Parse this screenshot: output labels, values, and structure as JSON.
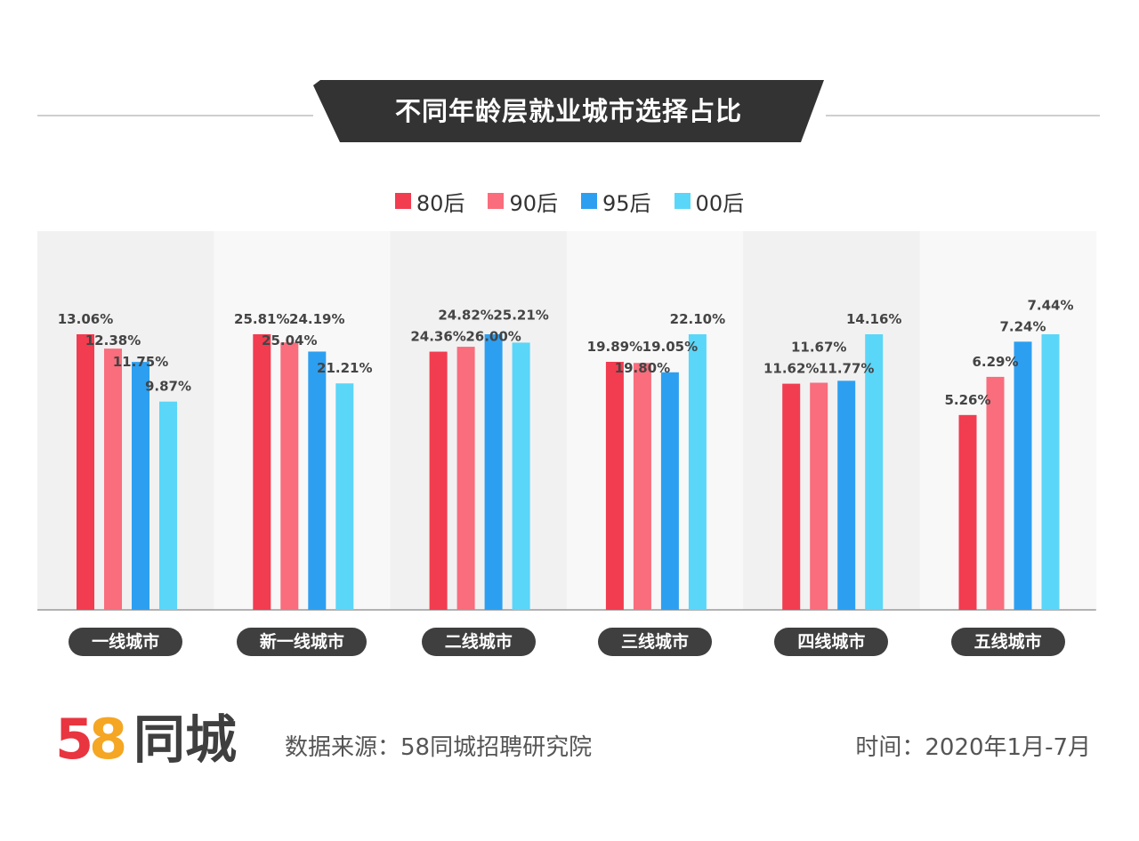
{
  "title": "不同年龄层就业城市选择占比",
  "legend": [
    {
      "label": "80后",
      "color": "#f23c50"
    },
    {
      "label": "90后",
      "color": "#f96d7c"
    },
    {
      "label": "95后",
      "color": "#2d9ff1"
    },
    {
      "label": "00后",
      "color": "#5ad6f8"
    }
  ],
  "chart_data": {
    "type": "bar",
    "title": "不同年龄层就业城市选择占比",
    "categories": [
      "一线城市",
      "新一线城市",
      "二线城市",
      "三线城市",
      "四线城市",
      "五线城市"
    ],
    "series": [
      {
        "name": "80后",
        "values": [
          13.06,
          25.81,
          24.36,
          19.89,
          11.62,
          5.26
        ],
        "labels": [
          "13.06%",
          "25.81%",
          "24.36%",
          "19.89%",
          "11.62%",
          "5.26%"
        ]
      },
      {
        "name": "90后",
        "values": [
          12.38,
          25.04,
          24.82,
          19.8,
          11.67,
          6.29
        ],
        "labels": [
          "12.38%",
          "25.04%",
          "24.82%",
          "19.80%",
          "11.67%",
          "6.29%"
        ]
      },
      {
        "name": "95后",
        "values": [
          11.75,
          24.19,
          26.0,
          19.05,
          11.77,
          7.24
        ],
        "labels": [
          "11.75%",
          "24.19%",
          "26.00%",
          "19.05%",
          "11.77%",
          "7.24%"
        ]
      },
      {
        "name": "00后",
        "values": [
          9.87,
          21.21,
          25.21,
          22.1,
          14.16,
          7.44
        ],
        "labels": [
          "9.87%",
          "21.21%",
          "25.21%",
          "22.10%",
          "14.16%",
          "7.44%"
        ]
      }
    ],
    "group_max": [
      13.06,
      25.81,
      26.0,
      22.1,
      14.16,
      7.44
    ],
    "xlabel": "",
    "ylabel": "",
    "note": "Each city group is scaled to its own maximum value"
  },
  "footer": {
    "logo_5": "5",
    "logo_8": "8",
    "logo_text": "同城",
    "source": "数据来源：58同城招聘研究院",
    "time": "时间：2020年1月-7月"
  },
  "colors": {
    "title_bg": "#333333",
    "panel_dark": "#f1f1f1",
    "panel_light": "#f8f8f8",
    "pill_bg": "#3f3f3f",
    "logo_5": "#e8353f",
    "logo_8": "#f5a623"
  }
}
